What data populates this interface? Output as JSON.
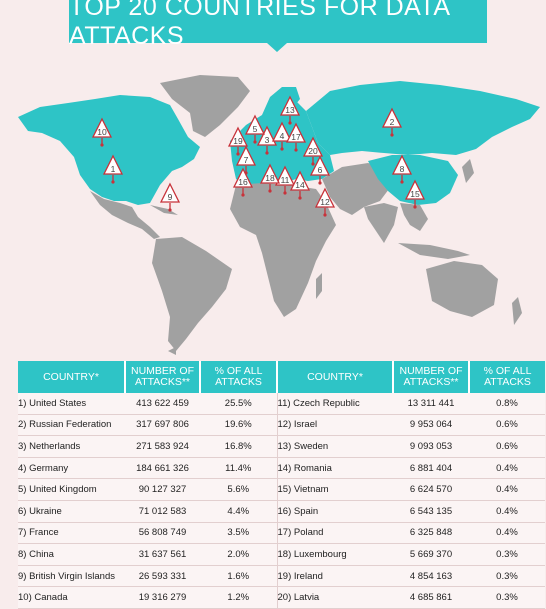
{
  "title": "TOP 20 COUNTRIES FOR DATA ATTACKS",
  "table": {
    "headers": {
      "country": "COUNTRY*",
      "attacks": "NUMBER OF ATTACKS**",
      "percent": "% OF ALL ATTACKS"
    },
    "left": [
      {
        "name": "1) United States",
        "attacks": "413 622 459",
        "percent": "25.5%"
      },
      {
        "name": "2) Russian Federation",
        "attacks": "317 697 806",
        "percent": "19.6%"
      },
      {
        "name": "3) Netherlands",
        "attacks": "271 583 924",
        "percent": "16.8%"
      },
      {
        "name": "4) Germany",
        "attacks": "184 661 326",
        "percent": "11.4%"
      },
      {
        "name": "5) United Kingdom",
        "attacks": "90 127 327",
        "percent": "5.6%"
      },
      {
        "name": "6) Ukraine",
        "attacks": "71 012 583",
        "percent": "4.4%"
      },
      {
        "name": "7) France",
        "attacks": "56 808 749",
        "percent": "3.5%"
      },
      {
        "name": "8) China",
        "attacks": "31 637 561",
        "percent": "2.0%"
      },
      {
        "name": "9) British Virgin Islands",
        "attacks": "26 593 331",
        "percent": "1.6%"
      },
      {
        "name": "10) Canada",
        "attacks": "19 316 279",
        "percent": "1.2%"
      }
    ],
    "right": [
      {
        "name": "11) Czech Republic",
        "attacks": "13 311 441",
        "percent": "0.8%"
      },
      {
        "name": "12) Israel",
        "attacks": "9 953 064",
        "percent": "0.6%"
      },
      {
        "name": "13) Sweden",
        "attacks": "9 093 053",
        "percent": "0.6%"
      },
      {
        "name": "14) Romania",
        "attacks": "6 881 404",
        "percent": "0.4%"
      },
      {
        "name": "15) Vietnam",
        "attacks": "6 624 570",
        "percent": "0.4%"
      },
      {
        "name": "16) Spain",
        "attacks": "6 543 135",
        "percent": "0.4%"
      },
      {
        "name": "17) Poland",
        "attacks": "6 325 848",
        "percent": "0.4%"
      },
      {
        "name": "18) Luxembourg",
        "attacks": "5 669 370",
        "percent": "0.3%"
      },
      {
        "name": "19) Ireland",
        "attacks": "4 854 163",
        "percent": "0.3%"
      },
      {
        "name": "20) Latvia",
        "attacks": "4 685 861",
        "percent": "0.3%"
      }
    ]
  },
  "map": {
    "highlight_color": "#2ec4c6",
    "base_color": "#a1a1a1",
    "marker_color": "#c8323a",
    "markers": [
      "1",
      "2",
      "3",
      "4",
      "5",
      "6",
      "7",
      "8",
      "9",
      "10",
      "11",
      "12",
      "13",
      "14",
      "15",
      "16",
      "17",
      "18",
      "19",
      "20"
    ]
  }
}
